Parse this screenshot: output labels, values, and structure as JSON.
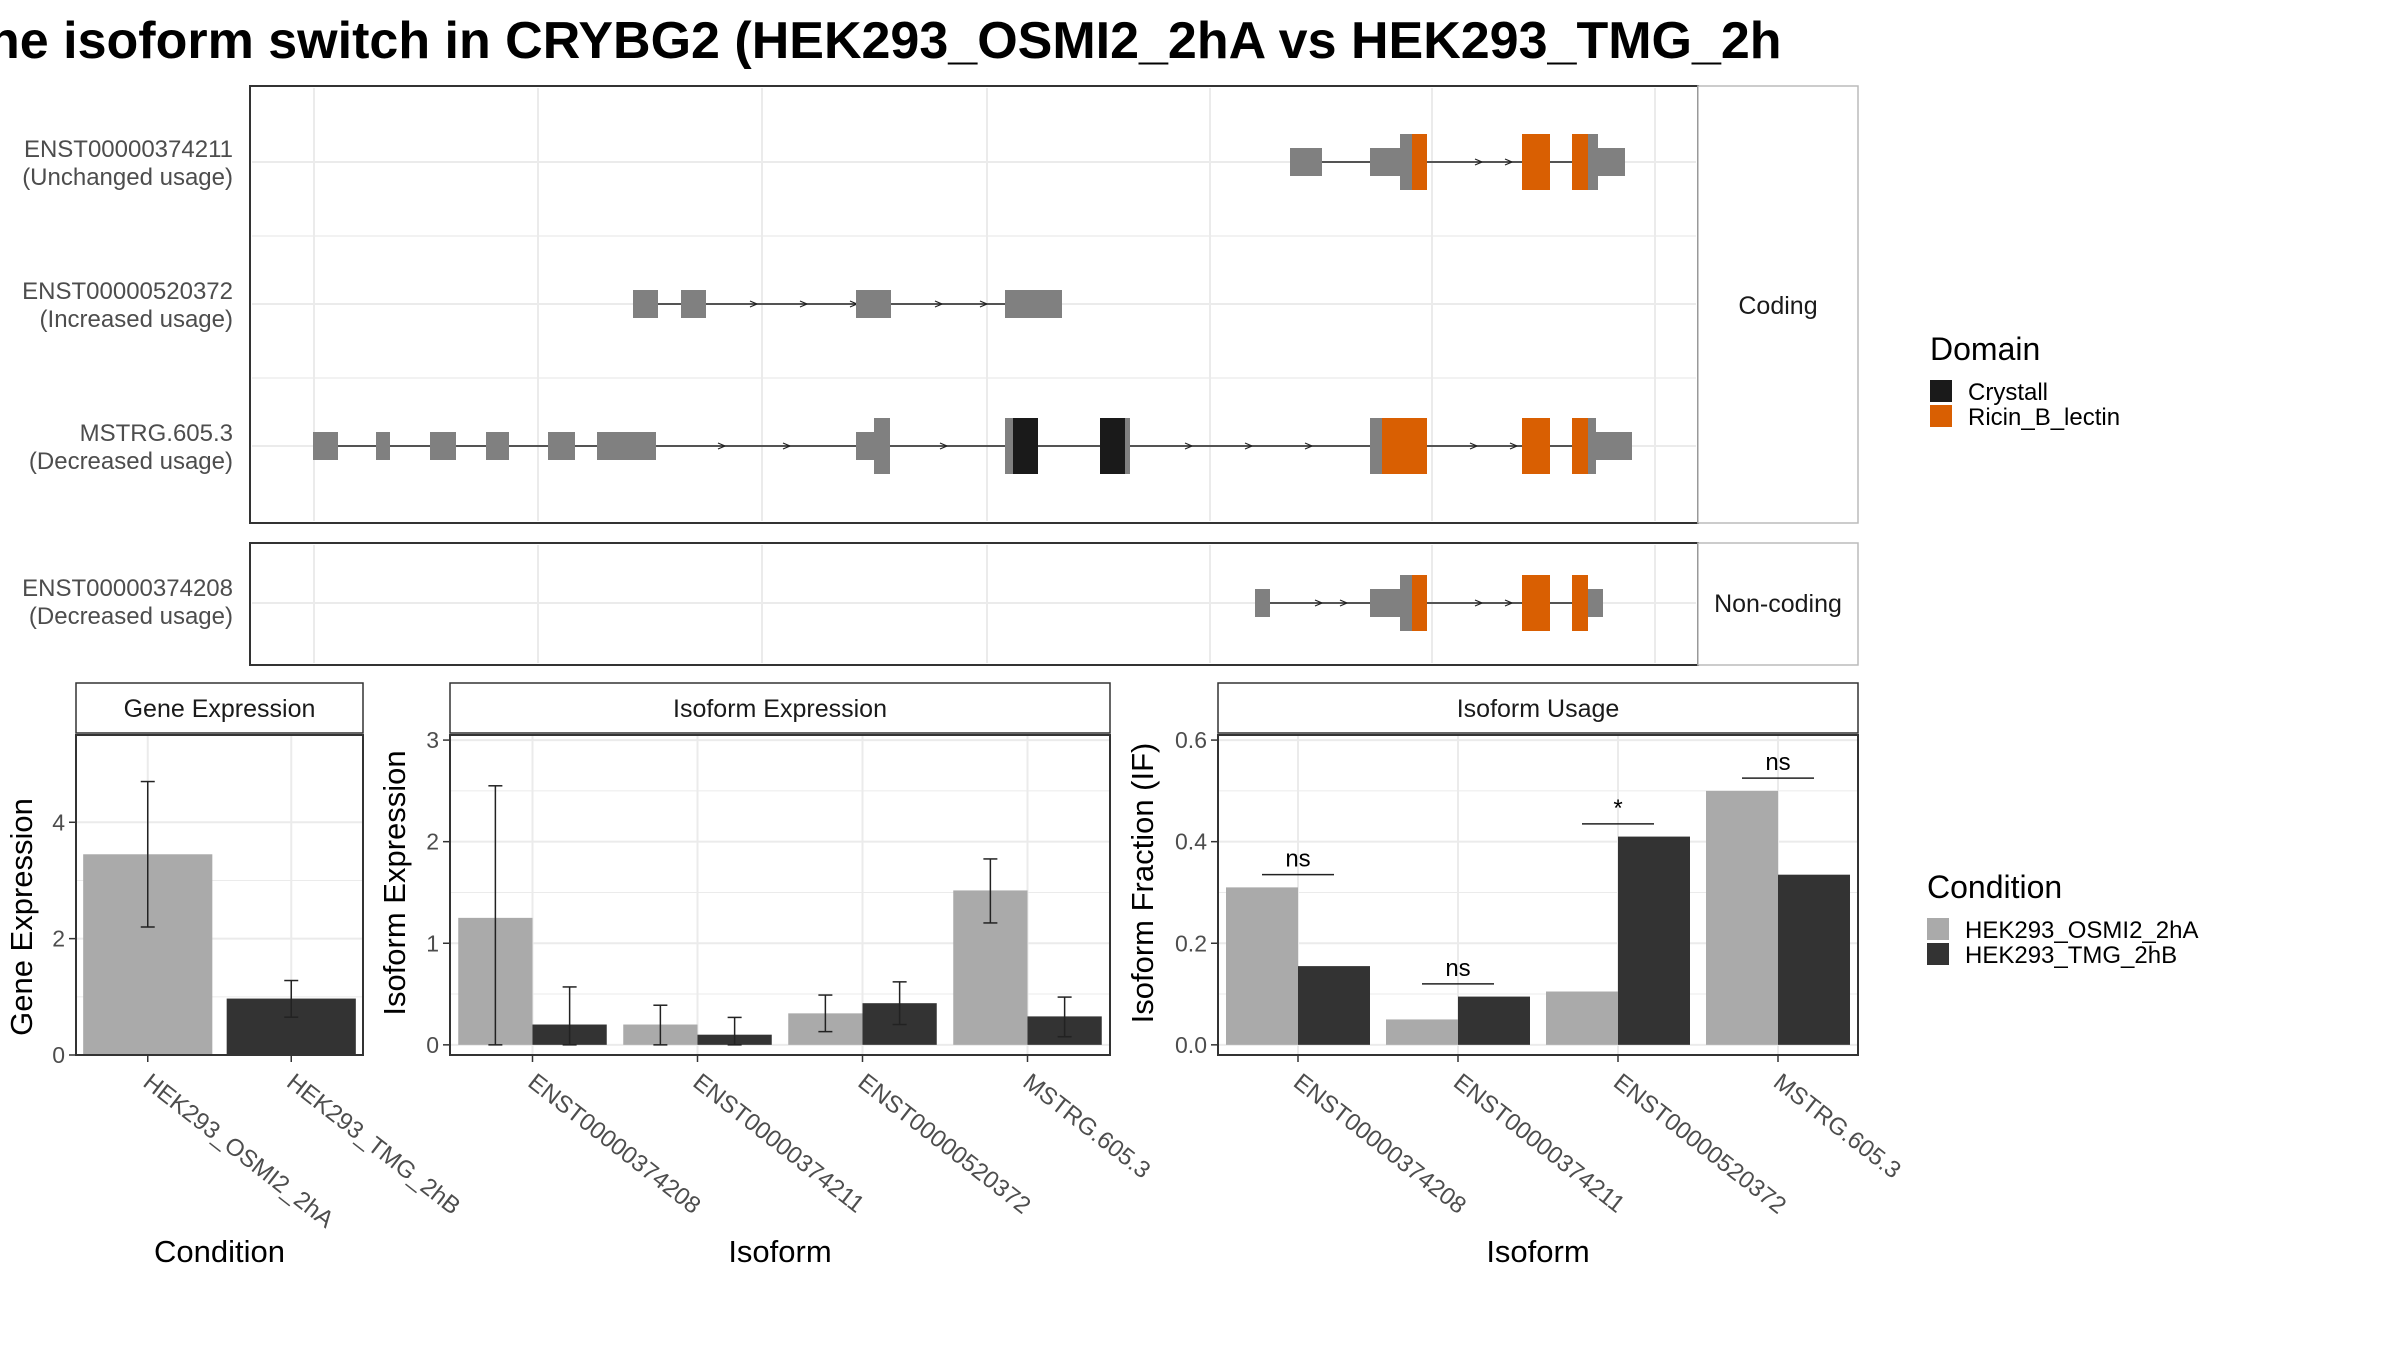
{
  "title": "ne isoform switch in CRYBG2 (HEK293_OSMI2_2hA vs HEK293_TMG_2h",
  "colors": {
    "exon": "#808080",
    "crystall": "#1a1a1a",
    "ricin": "#d95f02",
    "cond_a": "#aaaaaa",
    "cond_b": "#333333",
    "grid": "#ebebeb",
    "strip": "#ffffff",
    "frame": "#333333"
  },
  "structure": {
    "facets": [
      {
        "label": "Coding",
        "isoforms": [
          {
            "id": "ENST00000374211",
            "usage": "(Unchanged usage)"
          },
          {
            "id": "ENST00000520372",
            "usage": "(Increased usage)"
          },
          {
            "id": "MSTRG.605.3",
            "usage": "(Decreased usage)"
          }
        ]
      },
      {
        "label": "Non-coding",
        "isoforms": [
          {
            "id": "ENST00000374208",
            "usage": "(Decreased usage)"
          }
        ]
      }
    ],
    "domain_legend": {
      "title": "Domain",
      "items": [
        {
          "label": "Crystall",
          "color": "#1a1a1a"
        },
        {
          "label": "Ricin_B_lectin",
          "color": "#d95f02"
        }
      ]
    }
  },
  "condition_legend": {
    "title": "Condition",
    "items": [
      {
        "label": "HEK293_OSMI2_2hA",
        "color": "#aaaaaa"
      },
      {
        "label": "HEK293_TMG_2hB",
        "color": "#333333"
      }
    ]
  },
  "chart_data": [
    {
      "type": "bar",
      "title": "Gene Expression",
      "xlabel": "Condition",
      "ylabel": "Gene Expression",
      "ylim": [
        0,
        5.5
      ],
      "yticks": [
        0,
        2,
        4
      ],
      "categories": [
        "HEK293_OSMI2_2hA",
        "HEK293_TMG_2hB"
      ],
      "values": [
        3.45,
        0.97
      ],
      "error_low": [
        2.2,
        0.65
      ],
      "error_high": [
        4.7,
        1.28
      ]
    },
    {
      "type": "bar",
      "title": "Isoform Expression",
      "xlabel": "Isoform",
      "ylabel": "Isoform Expression",
      "ylim": [
        -0.1,
        3.05
      ],
      "yticks": [
        0,
        1,
        2,
        3
      ],
      "categories": [
        "ENST00000374208",
        "ENST00000374211",
        "ENST00000520372",
        "MSTRG.605.3"
      ],
      "series": [
        {
          "name": "HEK293_OSMI2_2hA",
          "values": [
            1.25,
            0.2,
            0.31,
            1.52
          ],
          "error_low": [
            0.0,
            0.0,
            0.13,
            1.2
          ],
          "error_high": [
            2.55,
            0.39,
            0.49,
            1.83
          ]
        },
        {
          "name": "HEK293_TMG_2hB",
          "values": [
            0.2,
            0.1,
            0.41,
            0.28
          ],
          "error_low": [
            0.0,
            0.0,
            0.2,
            0.08
          ],
          "error_high": [
            0.57,
            0.27,
            0.62,
            0.47
          ]
        }
      ]
    },
    {
      "type": "bar",
      "title": "Isoform Usage",
      "xlabel": "Isoform",
      "ylabel": "Isoform Fraction (IF)",
      "ylim": [
        -0.02,
        0.61
      ],
      "yticks": [
        0.0,
        0.2,
        0.4,
        0.6
      ],
      "ytick_labels": [
        "0.0",
        "0.2",
        "0.4",
        "0.6"
      ],
      "categories": [
        "ENST00000374208",
        "ENST00000374211",
        "ENST00000520372",
        "MSTRG.605.3"
      ],
      "series": [
        {
          "name": "HEK293_OSMI2_2hA",
          "values": [
            0.31,
            0.05,
            0.105,
            0.5
          ]
        },
        {
          "name": "HEK293_TMG_2hB",
          "values": [
            0.155,
            0.095,
            0.41,
            0.335
          ]
        }
      ],
      "significance": [
        {
          "label": "ns",
          "y": 0.335
        },
        {
          "label": "ns",
          "y": 0.12
        },
        {
          "label": "*",
          "y": 0.435
        },
        {
          "label": "ns",
          "y": 0.525
        }
      ]
    }
  ]
}
